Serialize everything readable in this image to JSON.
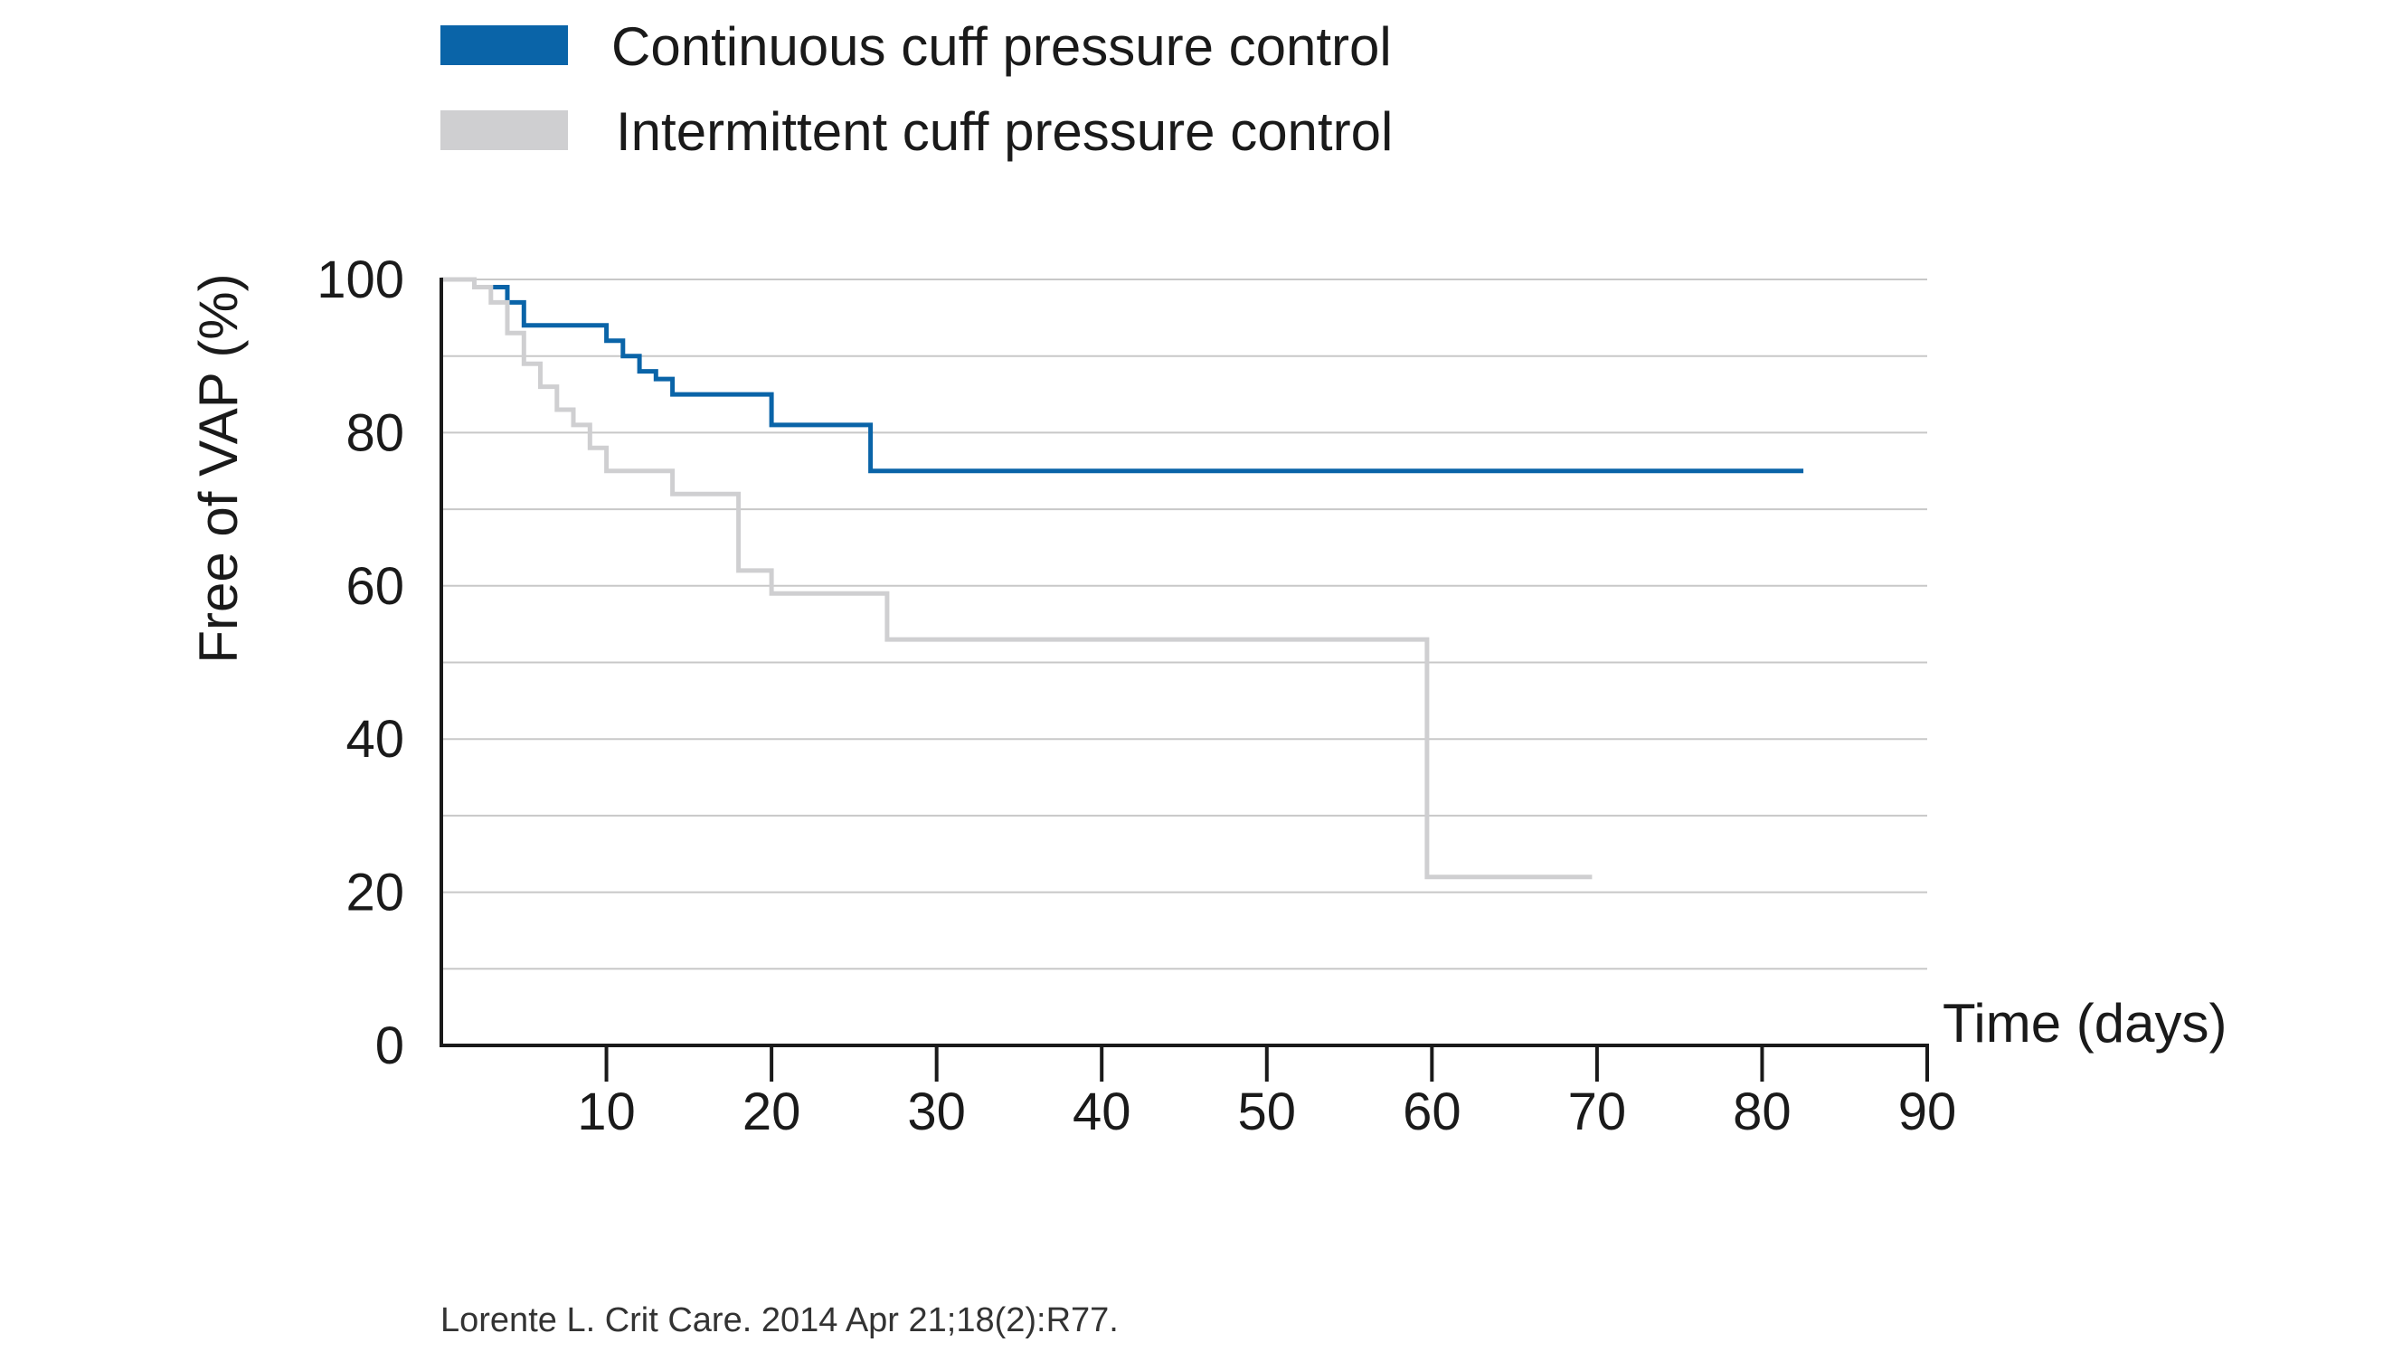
{
  "chart_data": {
    "type": "line",
    "subtype": "step",
    "xlabel": "Time (days)",
    "ylabel": "Free of VAP (%)",
    "xlim": [
      0,
      90
    ],
    "ylim": [
      0,
      100
    ],
    "x_ticks": [
      10,
      20,
      30,
      40,
      50,
      60,
      70,
      80,
      90
    ],
    "y_ticks": [
      0,
      20,
      40,
      60,
      80,
      100
    ],
    "grid": "horizontal",
    "legend_position": "top-left",
    "series": [
      {
        "name": "Continuous cuff pressure control",
        "color": "#0a64a8",
        "points": [
          [
            0,
            100
          ],
          [
            2,
            100
          ],
          [
            2,
            99
          ],
          [
            4,
            99
          ],
          [
            4,
            97
          ],
          [
            5,
            97
          ],
          [
            5,
            94
          ],
          [
            10,
            94
          ],
          [
            10,
            92
          ],
          [
            11,
            92
          ],
          [
            11,
            90
          ],
          [
            12,
            90
          ],
          [
            12,
            88
          ],
          [
            13,
            88
          ],
          [
            13,
            87
          ],
          [
            14,
            87
          ],
          [
            14,
            85
          ],
          [
            20,
            85
          ],
          [
            20,
            81
          ],
          [
            26,
            81
          ],
          [
            26,
            75
          ],
          [
            82.5,
            75
          ]
        ]
      },
      {
        "name": "Intermittent cuff pressure control",
        "color": "#cfcfd1",
        "points": [
          [
            0,
            100
          ],
          [
            2,
            100
          ],
          [
            2,
            99
          ],
          [
            3,
            99
          ],
          [
            3,
            97
          ],
          [
            4,
            97
          ],
          [
            4,
            93
          ],
          [
            5,
            93
          ],
          [
            5,
            89
          ],
          [
            6,
            89
          ],
          [
            6,
            86
          ],
          [
            7,
            86
          ],
          [
            7,
            83
          ],
          [
            8,
            83
          ],
          [
            8,
            81
          ],
          [
            9,
            81
          ],
          [
            9,
            78
          ],
          [
            10,
            78
          ],
          [
            10,
            75
          ],
          [
            14,
            75
          ],
          [
            14,
            72
          ],
          [
            18,
            72
          ],
          [
            18,
            62
          ],
          [
            20,
            62
          ],
          [
            20,
            59
          ],
          [
            27,
            59
          ],
          [
            27,
            53
          ],
          [
            59.7,
            53
          ],
          [
            59.7,
            22
          ],
          [
            69.7,
            22
          ]
        ]
      }
    ]
  },
  "source": "Lorente L. Crit Care. 2014 Apr 21;18(2):R77."
}
